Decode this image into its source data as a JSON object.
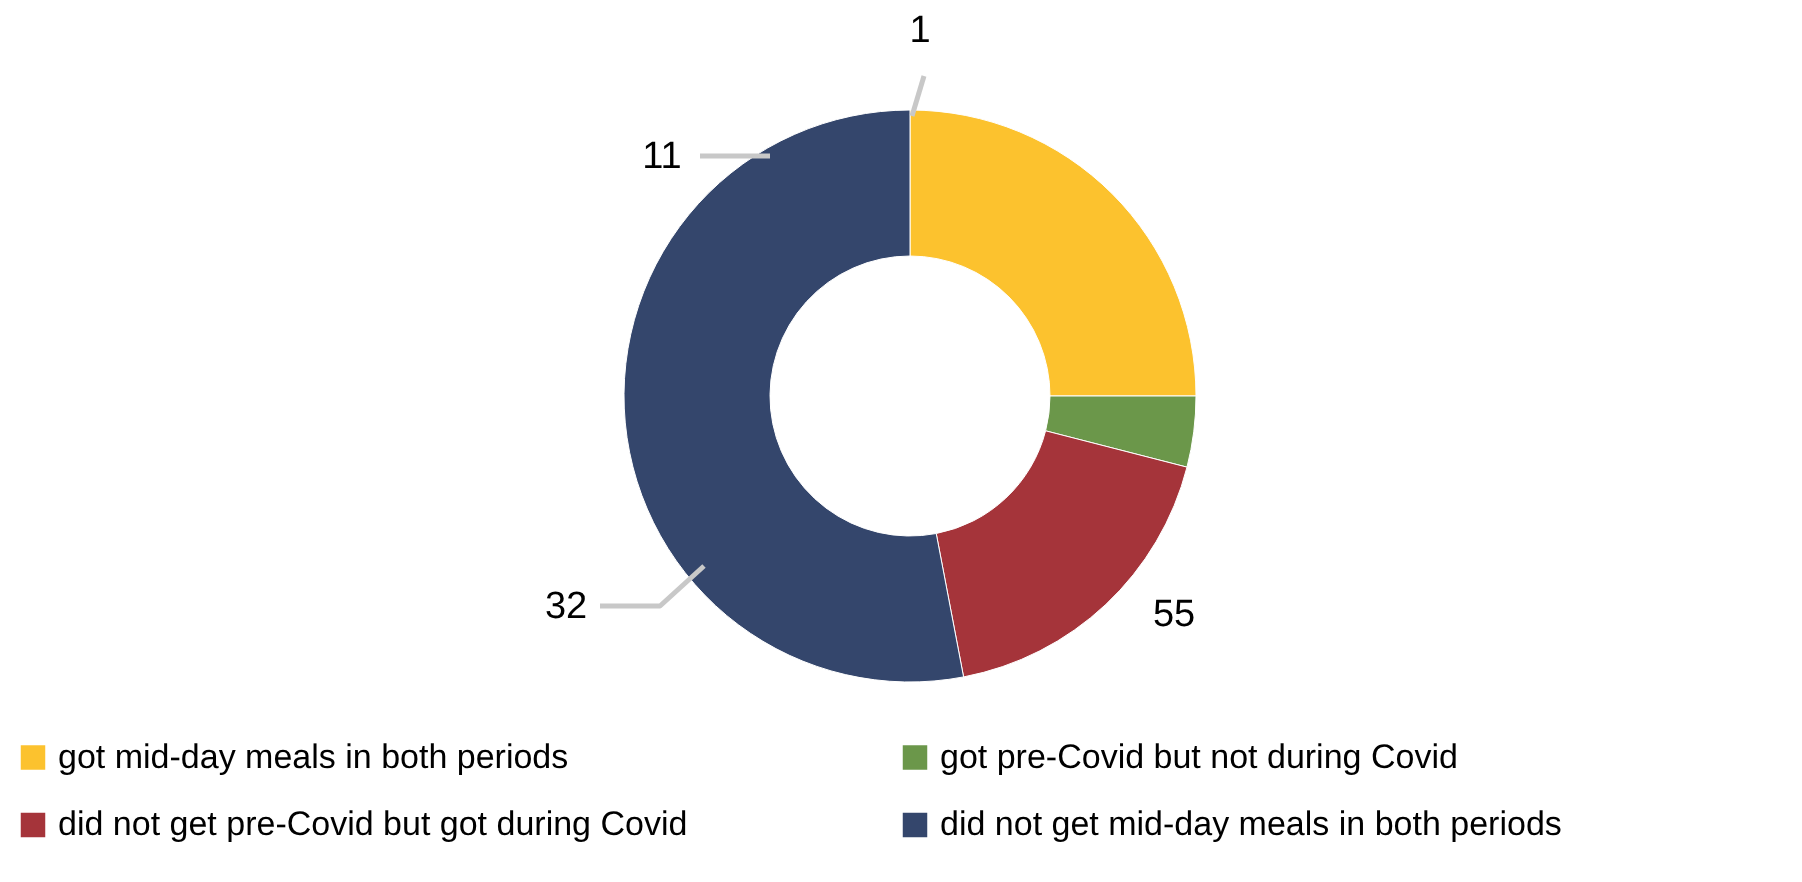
{
  "chart_data": {
    "type": "donut",
    "categories": [
      "got mid-day meals in both periods",
      "got pre-Covid but not during Covid",
      "did not get pre-Covid  but got during Covid",
      "did not get mid-day meals in both periods"
    ],
    "values": [
      25,
      4,
      18,
      53
    ],
    "colors": [
      "#fcc22e",
      "#6b974a",
      "#a5343a",
      "#34466c"
    ],
    "annotations": [
      "1",
      "11",
      "32",
      "55"
    ],
    "legend": "bottom"
  }
}
